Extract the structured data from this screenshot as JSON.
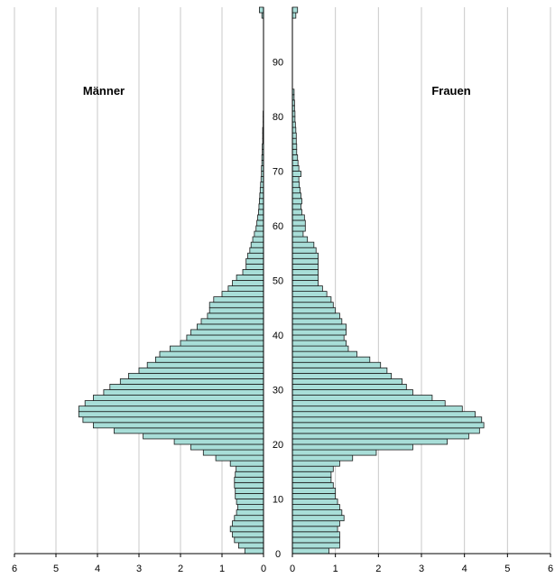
{
  "chart_data": {
    "type": "bar",
    "orientation": "horizontal",
    "subtype": "population-pyramid",
    "left_label": "Männer",
    "right_label": "Frauen",
    "x_ticks_left": [
      "6",
      "5",
      "4",
      "3",
      "2",
      "1",
      "0"
    ],
    "x_ticks_right": [
      "0",
      "1",
      "2",
      "3",
      "4",
      "5",
      "6"
    ],
    "y_ticks": [
      "0",
      "10",
      "20",
      "30",
      "40",
      "50",
      "60",
      "70",
      "80",
      "90"
    ],
    "xlim": [
      0,
      6
    ],
    "ylim": [
      0,
      100
    ],
    "ages": [
      0,
      1,
      2,
      3,
      4,
      5,
      6,
      7,
      8,
      9,
      10,
      11,
      12,
      13,
      14,
      15,
      16,
      17,
      18,
      19,
      20,
      21,
      22,
      23,
      24,
      25,
      26,
      27,
      28,
      29,
      30,
      31,
      32,
      33,
      34,
      35,
      36,
      37,
      38,
      39,
      40,
      41,
      42,
      43,
      44,
      45,
      46,
      47,
      48,
      49,
      50,
      51,
      52,
      53,
      54,
      55,
      56,
      57,
      58,
      59,
      60,
      61,
      62,
      63,
      64,
      65,
      66,
      67,
      68,
      69,
      70,
      71,
      72,
      73,
      74,
      75,
      76,
      77,
      78,
      79,
      80,
      81,
      82,
      83,
      84,
      85,
      86,
      87,
      88,
      89,
      90,
      91,
      92,
      93,
      94,
      95,
      96,
      97,
      98,
      99
    ],
    "series": [
      {
        "name": "Männer",
        "values": [
          0.45,
          0.6,
          0.7,
          0.75,
          0.8,
          0.75,
          0.7,
          0.65,
          0.62,
          0.65,
          0.68,
          0.68,
          0.7,
          0.7,
          0.68,
          0.66,
          0.8,
          1.15,
          1.45,
          1.75,
          2.15,
          2.9,
          3.6,
          4.1,
          4.35,
          4.45,
          4.45,
          4.3,
          4.1,
          3.85,
          3.7,
          3.45,
          3.25,
          3.0,
          2.8,
          2.6,
          2.5,
          2.25,
          2.0,
          1.85,
          1.75,
          1.6,
          1.5,
          1.35,
          1.3,
          1.3,
          1.2,
          1.0,
          0.85,
          0.75,
          0.65,
          0.5,
          0.42,
          0.42,
          0.38,
          0.33,
          0.3,
          0.26,
          0.22,
          0.18,
          0.16,
          0.14,
          0.12,
          0.11,
          0.1,
          0.09,
          0.08,
          0.07,
          0.06,
          0.05,
          0.05,
          0.04,
          0.04,
          0.03,
          0.03,
          0.02,
          0.02,
          0.02,
          0.01,
          0.01,
          0.01,
          0,
          0,
          0,
          0,
          0,
          0,
          0,
          0,
          0,
          0,
          0,
          0,
          0,
          0,
          0,
          0,
          0,
          0.04,
          0.1
        ]
      },
      {
        "name": "Frauen",
        "values": [
          0.85,
          1.1,
          1.1,
          1.1,
          1.05,
          1.1,
          1.2,
          1.15,
          1.1,
          1.05,
          1.0,
          1.0,
          0.95,
          0.9,
          0.9,
          0.95,
          1.1,
          1.4,
          1.95,
          2.8,
          3.6,
          4.1,
          4.35,
          4.45,
          4.4,
          4.25,
          3.95,
          3.55,
          3.25,
          2.8,
          2.65,
          2.55,
          2.3,
          2.2,
          2.05,
          1.8,
          1.5,
          1.3,
          1.25,
          1.2,
          1.25,
          1.25,
          1.15,
          1.1,
          1.0,
          0.95,
          0.9,
          0.8,
          0.7,
          0.6,
          0.6,
          0.6,
          0.6,
          0.6,
          0.6,
          0.55,
          0.5,
          0.35,
          0.25,
          0.3,
          0.3,
          0.28,
          0.22,
          0.2,
          0.22,
          0.2,
          0.18,
          0.16,
          0.15,
          0.2,
          0.15,
          0.13,
          0.12,
          0.1,
          0.1,
          0.09,
          0.09,
          0.08,
          0.07,
          0.06,
          0.06,
          0.05,
          0.05,
          0.04,
          0.04,
          0,
          0,
          0,
          0,
          0,
          0,
          0,
          0,
          0,
          0,
          0,
          0,
          0,
          0.08,
          0.12
        ]
      }
    ]
  }
}
